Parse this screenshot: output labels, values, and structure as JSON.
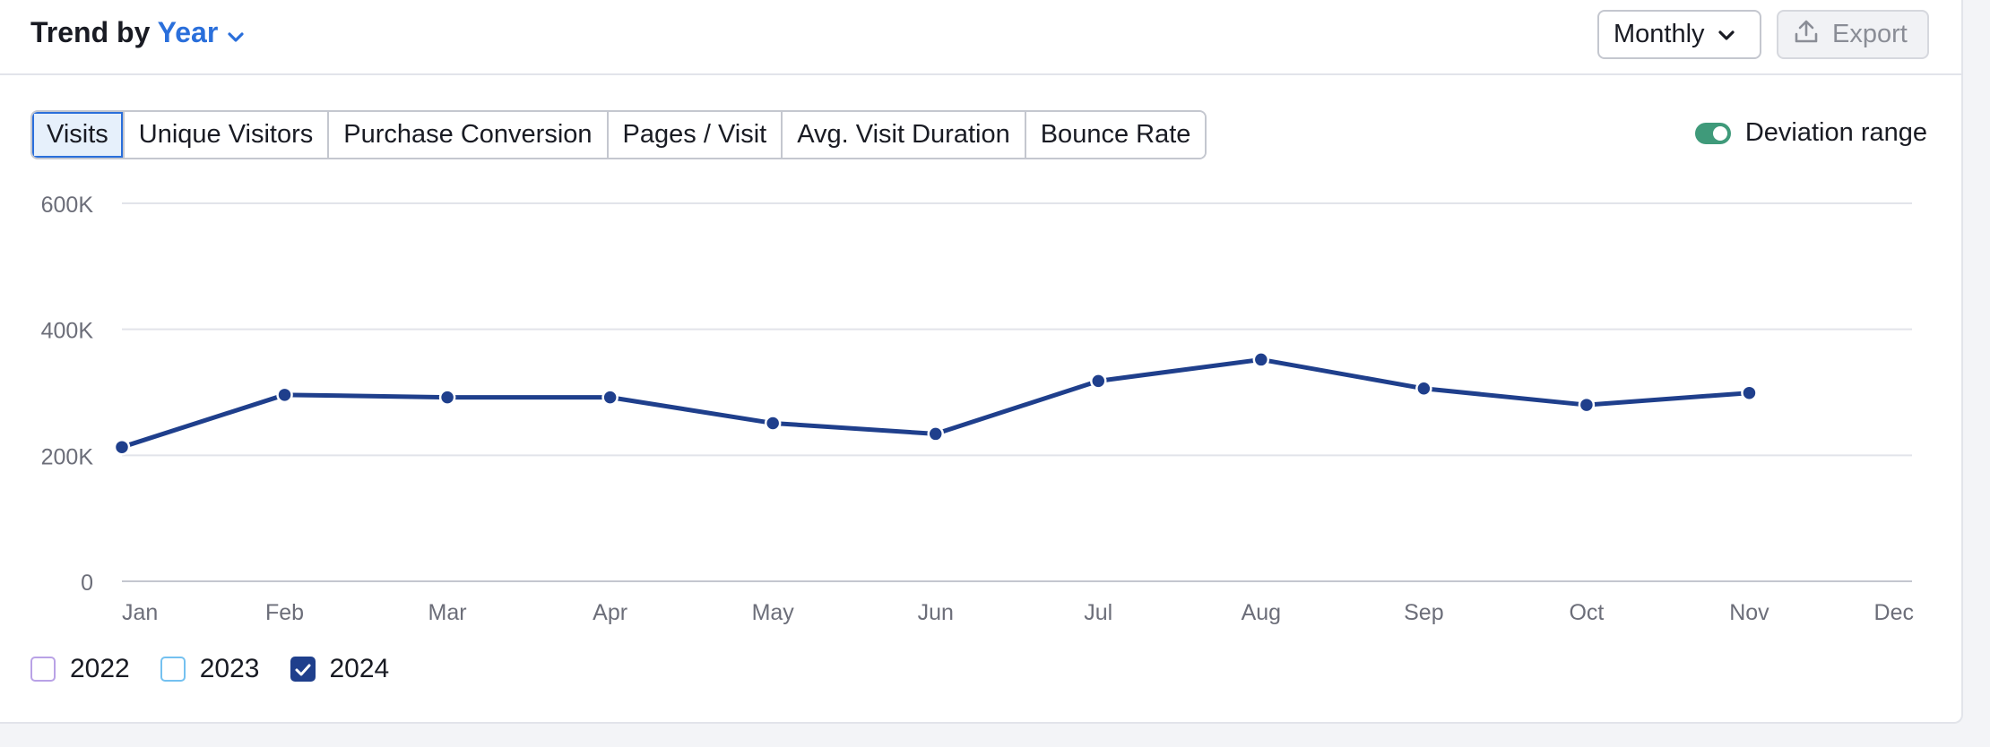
{
  "header": {
    "title_prefix": "Trend by",
    "title_accent": "Year",
    "interval_label": "Monthly",
    "export_label": "Export"
  },
  "tabs": [
    {
      "label": "Visits",
      "active": true
    },
    {
      "label": "Unique Visitors",
      "active": false
    },
    {
      "label": "Purchase Conversion",
      "active": false
    },
    {
      "label": "Pages / Visit",
      "active": false
    },
    {
      "label": "Avg. Visit Duration",
      "active": false
    },
    {
      "label": "Bounce Rate",
      "active": false
    }
  ],
  "deviation": {
    "label": "Deviation range",
    "enabled": true,
    "color": "#3f9a7a"
  },
  "legend": [
    {
      "label": "2022",
      "checked": false,
      "color": "#b9a2e6"
    },
    {
      "label": "2023",
      "checked": false,
      "color": "#74c1f0"
    },
    {
      "label": "2024",
      "checked": true,
      "color": "#1f3f8c"
    }
  ],
  "chart_data": {
    "type": "line",
    "categories": [
      "Jan",
      "Feb",
      "Mar",
      "Apr",
      "May",
      "Jun",
      "Jul",
      "Aug",
      "Sep",
      "Oct",
      "Nov",
      "Dec"
    ],
    "y_ticks": [
      {
        "value": 0,
        "label": "0"
      },
      {
        "value": 200000,
        "label": "200K"
      },
      {
        "value": 400000,
        "label": "400K"
      },
      {
        "value": 600000,
        "label": "600K"
      }
    ],
    "ylim": [
      0,
      600000
    ],
    "grid": true,
    "series": [
      {
        "name": "2024",
        "color": "#1f3f8c",
        "values": [
          213000,
          296000,
          292000,
          292000,
          251000,
          234000,
          318000,
          352000,
          306000,
          280000,
          299000,
          null
        ]
      }
    ]
  }
}
